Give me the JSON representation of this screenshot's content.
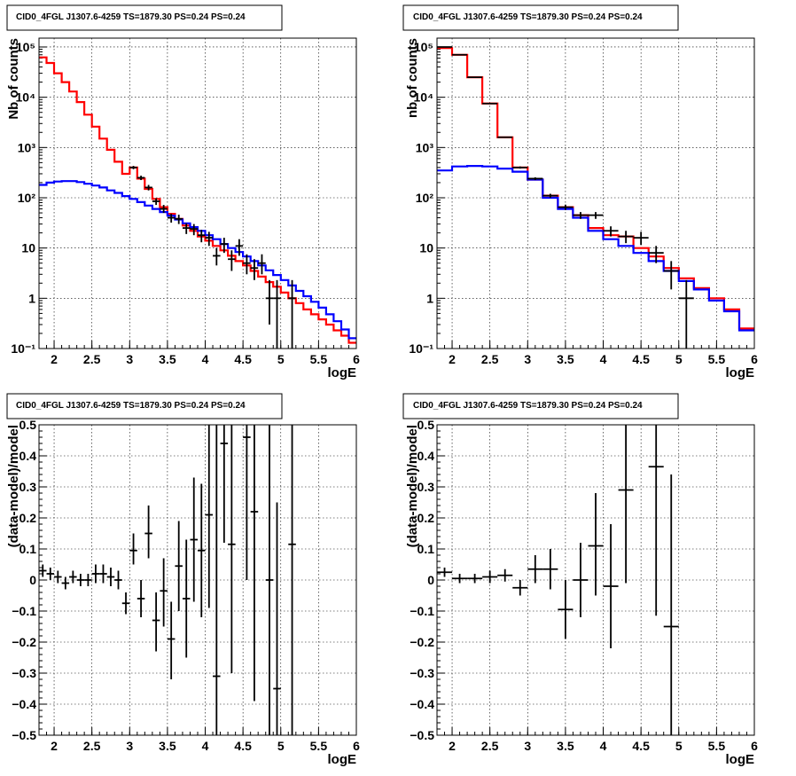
{
  "colors": {
    "total_model": "#ff0000",
    "source_model": "#0000ff",
    "data": "#000000",
    "grid": "#000000"
  },
  "chart_data": [
    {
      "type": "line",
      "position": "top-left",
      "title": "CID0_4FGL J1307.6-4259 TS=1879.30 PS=0.24 PS=0.24",
      "xlabel": "logE",
      "ylabel": "Nb of counts",
      "xlim": [
        1.8,
        6.0
      ],
      "ylim": [
        0.1,
        150000
      ],
      "yscale": "log",
      "grid": true,
      "xticks": [
        "2",
        "2.5",
        "3",
        "3.5",
        "4",
        "4.5",
        "5",
        "5.5",
        "6"
      ],
      "yticks": [
        "10^-1",
        "1",
        "10",
        "10^2",
        "10^3",
        "10^4",
        "10^5"
      ],
      "bin_edges": [
        1.8,
        1.9,
        2.0,
        2.1,
        2.2,
        2.3,
        2.4,
        2.5,
        2.6,
        2.7,
        2.8,
        2.9,
        3.0,
        3.1,
        3.2,
        3.3,
        3.4,
        3.5,
        3.6,
        3.7,
        3.8,
        3.9,
        4.0,
        4.1,
        4.2,
        4.3,
        4.4,
        4.5,
        4.6,
        4.7,
        4.8,
        4.9,
        5.0,
        5.1,
        5.2,
        5.3,
        5.4,
        5.5,
        5.6,
        5.7,
        5.8,
        5.9,
        6.0
      ],
      "series": [
        {
          "name": "total model",
          "color": "#ff0000",
          "values": [
            62000,
            48000,
            30000,
            20000,
            13000,
            8000,
            4500,
            2600,
            1500,
            900,
            520,
            300,
            400,
            240,
            150,
            95,
            65,
            48,
            38,
            28,
            22,
            17,
            14,
            11,
            9,
            7,
            5.5,
            4.5,
            3.5,
            2.7,
            2.1,
            1.7,
            1.3,
            1.0,
            0.8,
            0.6,
            0.48,
            0.38,
            0.3,
            0.23,
            0.18,
            0.13
          ]
        },
        {
          "name": "source model",
          "color": "#0000ff",
          "values": [
            180,
            200,
            210,
            215,
            215,
            205,
            190,
            175,
            160,
            140,
            125,
            108,
            95,
            82,
            70,
            60,
            52,
            44,
            37,
            31,
            26,
            22,
            18,
            15,
            12,
            10,
            8.3,
            6.8,
            5.5,
            4.5,
            3.6,
            2.9,
            2.3,
            1.8,
            1.4,
            1.1,
            0.85,
            0.65,
            0.48,
            0.35,
            0.24,
            0.16
          ]
        }
      ],
      "points": [
        {
          "x": 3.05,
          "y": 400,
          "xerr": 0.05,
          "ylo": 370,
          "yhi": 430
        },
        {
          "x": 3.15,
          "y": 250,
          "xerr": 0.05,
          "ylo": 225,
          "yhi": 275
        },
        {
          "x": 3.25,
          "y": 160,
          "xerr": 0.05,
          "ylo": 140,
          "yhi": 180
        },
        {
          "x": 3.35,
          "y": 85,
          "xerr": 0.05,
          "ylo": 72,
          "yhi": 98
        },
        {
          "x": 3.45,
          "y": 60,
          "xerr": 0.05,
          "ylo": 50,
          "yhi": 72
        },
        {
          "x": 3.55,
          "y": 40,
          "xerr": 0.05,
          "ylo": 32,
          "yhi": 48
        },
        {
          "x": 3.65,
          "y": 38,
          "xerr": 0.05,
          "ylo": 30,
          "yhi": 46
        },
        {
          "x": 3.75,
          "y": 25,
          "xerr": 0.05,
          "ylo": 19,
          "yhi": 31
        },
        {
          "x": 3.85,
          "y": 24,
          "xerr": 0.05,
          "ylo": 18,
          "yhi": 30
        },
        {
          "x": 3.95,
          "y": 18,
          "xerr": 0.05,
          "ylo": 13,
          "yhi": 23
        },
        {
          "x": 4.05,
          "y": 16,
          "xerr": 0.05,
          "ylo": 11,
          "yhi": 21
        },
        {
          "x": 4.15,
          "y": 7,
          "xerr": 0.05,
          "ylo": 4.5,
          "yhi": 10
        },
        {
          "x": 4.25,
          "y": 12,
          "xerr": 0.05,
          "ylo": 8,
          "yhi": 16
        },
        {
          "x": 4.35,
          "y": 6,
          "xerr": 0.05,
          "ylo": 3.5,
          "yhi": 9
        },
        {
          "x": 4.45,
          "y": 11,
          "xerr": 0.05,
          "ylo": 7,
          "yhi": 15
        },
        {
          "x": 4.55,
          "y": 5,
          "xerr": 0.05,
          "ylo": 3,
          "yhi": 7.5
        },
        {
          "x": 4.65,
          "y": 4,
          "xerr": 0.05,
          "ylo": 2.3,
          "yhi": 6
        },
        {
          "x": 4.75,
          "y": 5,
          "xerr": 0.05,
          "ylo": 3,
          "yhi": 7.5
        },
        {
          "x": 4.85,
          "y": 1,
          "xerr": 0.05,
          "ylo": 0.3,
          "yhi": 2.3
        },
        {
          "x": 4.95,
          "y": 1,
          "xerr": 0.05,
          "ylo": 0.1,
          "yhi": 2.3
        },
        {
          "x": 5.15,
          "y": 1,
          "xerr": 0.05,
          "ylo": 0.1,
          "yhi": 2.3
        }
      ]
    },
    {
      "type": "line",
      "position": "top-right",
      "title": "CID0_4FGL J1307.6-4259 TS=1879.30 PS=0.24 PS=0.24",
      "xlabel": "logE",
      "ylabel": "nb of counts",
      "xlim": [
        1.8,
        6.0
      ],
      "ylim": [
        0.1,
        150000
      ],
      "yscale": "log",
      "grid": true,
      "xticks": [
        "2",
        "2.5",
        "3",
        "3.5",
        "4",
        "4.5",
        "5",
        "5.5",
        "6"
      ],
      "yticks": [
        "10^-1",
        "1",
        "10",
        "10^2",
        "10^3",
        "10^4",
        "10^5"
      ],
      "bin_edges": [
        1.8,
        2.0,
        2.2,
        2.4,
        2.6,
        2.8,
        3.0,
        3.2,
        3.4,
        3.6,
        3.8,
        4.0,
        4.2,
        4.4,
        4.6,
        4.8,
        5.0,
        5.2,
        5.4,
        5.6,
        5.8,
        6.0
      ],
      "series": [
        {
          "name": "total model",
          "color": "#ff0000",
          "values": [
            95000,
            70000,
            25000,
            7500,
            1600,
            400,
            230,
            110,
            65,
            45,
            25,
            18,
            17,
            10,
            6.8,
            4,
            2.5,
            1.6,
            1.0,
            0.6,
            0.25
          ]
        },
        {
          "name": "source model",
          "color": "#0000ff",
          "values": [
            350,
            420,
            430,
            420,
            380,
            330,
            230,
            100,
            60,
            40,
            22,
            15,
            11,
            8,
            5.5,
            3.5,
            2.2,
            1.5,
            0.9,
            0.55,
            0.23
          ]
        }
      ],
      "points": [
        {
          "x": 1.9,
          "y": 100000,
          "xerr": 0.1,
          "ylo": 99000,
          "yhi": 101000
        },
        {
          "x": 2.1,
          "y": 70000,
          "xerr": 0.1,
          "ylo": 69000,
          "yhi": 71000
        },
        {
          "x": 2.3,
          "y": 25000,
          "xerr": 0.1,
          "ylo": 24500,
          "yhi": 25500
        },
        {
          "x": 2.5,
          "y": 7500,
          "xerr": 0.1,
          "ylo": 7300,
          "yhi": 7700
        },
        {
          "x": 2.7,
          "y": 1600,
          "xerr": 0.1,
          "ylo": 1550,
          "yhi": 1650
        },
        {
          "x": 2.9,
          "y": 400,
          "xerr": 0.1,
          "ylo": 380,
          "yhi": 420
        },
        {
          "x": 3.1,
          "y": 240,
          "xerr": 0.1,
          "ylo": 225,
          "yhi": 255
        },
        {
          "x": 3.3,
          "y": 110,
          "xerr": 0.1,
          "ylo": 100,
          "yhi": 120
        },
        {
          "x": 3.5,
          "y": 65,
          "xerr": 0.1,
          "ylo": 57,
          "yhi": 73
        },
        {
          "x": 3.7,
          "y": 45,
          "xerr": 0.1,
          "ylo": 38,
          "yhi": 52
        },
        {
          "x": 3.9,
          "y": 45,
          "xerr": 0.1,
          "ylo": 38,
          "yhi": 52
        },
        {
          "x": 4.1,
          "y": 22,
          "xerr": 0.1,
          "ylo": 17,
          "yhi": 27
        },
        {
          "x": 4.3,
          "y": 17,
          "xerr": 0.1,
          "ylo": 12.5,
          "yhi": 22
        },
        {
          "x": 4.5,
          "y": 16,
          "xerr": 0.1,
          "ylo": 11.5,
          "yhi": 21
        },
        {
          "x": 4.7,
          "y": 8,
          "xerr": 0.1,
          "ylo": 5,
          "yhi": 11
        },
        {
          "x": 4.9,
          "y": 3.5,
          "xerr": 0.1,
          "ylo": 1.5,
          "yhi": 5.5
        },
        {
          "x": 5.1,
          "y": 1,
          "xerr": 0.1,
          "ylo": 0.1,
          "yhi": 2.3
        }
      ]
    },
    {
      "type": "scatter",
      "position": "bottom-left",
      "title": "CID0_4FGL J1307.6-4259 TS=1879.30 PS=0.24 PS=0.24",
      "xlabel": "logE",
      "ylabel": "(data-model)/model",
      "xlim": [
        1.8,
        6.0
      ],
      "ylim": [
        -0.5,
        0.5
      ],
      "yscale": "linear",
      "grid": true,
      "xticks": [
        "2",
        "2.5",
        "3",
        "3.5",
        "4",
        "4.5",
        "5",
        "5.5",
        "6"
      ],
      "yticks": [
        "−0.5",
        "−0.4",
        "−0.3",
        "−0.2",
        "−0.1",
        "0",
        "0.1",
        "0.2",
        "0.3",
        "0.4",
        "0.5"
      ],
      "points": [
        {
          "x": 1.85,
          "y": 0.03,
          "xerr": 0.05,
          "ylo": 0.01,
          "yhi": 0.05
        },
        {
          "x": 1.95,
          "y": 0.02,
          "xerr": 0.05,
          "ylo": 0.0,
          "yhi": 0.04
        },
        {
          "x": 2.05,
          "y": 0.01,
          "xerr": 0.05,
          "ylo": -0.01,
          "yhi": 0.03
        },
        {
          "x": 2.15,
          "y": -0.01,
          "xerr": 0.05,
          "ylo": -0.03,
          "yhi": 0.01
        },
        {
          "x": 2.25,
          "y": 0.01,
          "xerr": 0.05,
          "ylo": -0.01,
          "yhi": 0.03
        },
        {
          "x": 2.35,
          "y": 0.0,
          "xerr": 0.05,
          "ylo": -0.02,
          "yhi": 0.02
        },
        {
          "x": 2.45,
          "y": 0.0,
          "xerr": 0.05,
          "ylo": -0.02,
          "yhi": 0.02
        },
        {
          "x": 2.55,
          "y": 0.02,
          "xerr": 0.05,
          "ylo": -0.01,
          "yhi": 0.05
        },
        {
          "x": 2.65,
          "y": 0.02,
          "xerr": 0.05,
          "ylo": -0.01,
          "yhi": 0.05
        },
        {
          "x": 2.75,
          "y": 0.01,
          "xerr": 0.05,
          "ylo": -0.02,
          "yhi": 0.04
        },
        {
          "x": 2.85,
          "y": 0.0,
          "xerr": 0.05,
          "ylo": -0.03,
          "yhi": 0.03
        },
        {
          "x": 2.95,
          "y": -0.075,
          "xerr": 0.05,
          "ylo": -0.11,
          "yhi": -0.04
        },
        {
          "x": 3.05,
          "y": 0.095,
          "xerr": 0.05,
          "ylo": 0.05,
          "yhi": 0.15
        },
        {
          "x": 3.15,
          "y": -0.06,
          "xerr": 0.05,
          "ylo": -0.12,
          "yhi": 0.0
        },
        {
          "x": 3.25,
          "y": 0.15,
          "xerr": 0.05,
          "ylo": 0.07,
          "yhi": 0.24
        },
        {
          "x": 3.35,
          "y": -0.13,
          "xerr": 0.05,
          "ylo": -0.23,
          "yhi": -0.04
        },
        {
          "x": 3.45,
          "y": -0.035,
          "xerr": 0.05,
          "ylo": -0.15,
          "yhi": 0.07
        },
        {
          "x": 3.55,
          "y": -0.19,
          "xerr": 0.05,
          "ylo": -0.32,
          "yhi": -0.07
        },
        {
          "x": 3.65,
          "y": 0.045,
          "xerr": 0.05,
          "ylo": -0.1,
          "yhi": 0.19
        },
        {
          "x": 3.75,
          "y": -0.06,
          "xerr": 0.05,
          "ylo": -0.25,
          "yhi": 0.13
        },
        {
          "x": 3.85,
          "y": 0.13,
          "xerr": 0.05,
          "ylo": -0.07,
          "yhi": 0.33
        },
        {
          "x": 3.95,
          "y": 0.095,
          "xerr": 0.05,
          "ylo": -0.12,
          "yhi": 0.31
        },
        {
          "x": 4.05,
          "y": 0.21,
          "xerr": 0.05,
          "ylo": -0.09,
          "yhi": 0.5
        },
        {
          "x": 4.15,
          "y": -0.31,
          "xerr": 0.05,
          "ylo": -0.5,
          "yhi": 0.5
        },
        {
          "x": 4.25,
          "y": 0.44,
          "xerr": 0.05,
          "ylo": 0.12,
          "yhi": 0.5
        },
        {
          "x": 4.35,
          "y": 0.115,
          "xerr": 0.05,
          "ylo": -0.3,
          "yhi": 0.5
        },
        {
          "x": 4.55,
          "y": 0.46,
          "xerr": 0.05,
          "ylo": 0.0,
          "yhi": 0.5
        },
        {
          "x": 4.65,
          "y": 0.22,
          "xerr": 0.05,
          "ylo": -0.39,
          "yhi": 0.5
        },
        {
          "x": 4.85,
          "y": 0.0,
          "xerr": 0.05,
          "ylo": -0.5,
          "yhi": 0.5
        },
        {
          "x": 4.95,
          "y": -0.35,
          "xerr": 0.05,
          "ylo": -0.5,
          "yhi": 0.25
        },
        {
          "x": 5.15,
          "y": 0.115,
          "xerr": 0.05,
          "ylo": -0.5,
          "yhi": 0.5
        }
      ]
    },
    {
      "type": "scatter",
      "position": "bottom-right",
      "title": "CID0_4FGL J1307.6-4259 TS=1879.30 PS=0.24 PS=0.24",
      "xlabel": "logE",
      "ylabel": "(data-model)/model",
      "xlim": [
        1.8,
        6.0
      ],
      "ylim": [
        -0.5,
        0.5
      ],
      "yscale": "linear",
      "grid": true,
      "xticks": [
        "2",
        "2.5",
        "3",
        "3.5",
        "4",
        "4.5",
        "5",
        "5.5",
        "6"
      ],
      "yticks": [
        "−0.5",
        "−0.4",
        "−0.3",
        "−0.2",
        "−0.1",
        "0",
        "0.1",
        "0.2",
        "0.3",
        "0.4",
        "0.5"
      ],
      "points": [
        {
          "x": 1.9,
          "y": 0.025,
          "xerr": 0.1,
          "ylo": 0.01,
          "yhi": 0.04
        },
        {
          "x": 2.1,
          "y": 0.005,
          "xerr": 0.1,
          "ylo": -0.01,
          "yhi": 0.02
        },
        {
          "x": 2.3,
          "y": 0.005,
          "xerr": 0.1,
          "ylo": -0.01,
          "yhi": 0.02
        },
        {
          "x": 2.5,
          "y": 0.01,
          "xerr": 0.1,
          "ylo": -0.01,
          "yhi": 0.03
        },
        {
          "x": 2.7,
          "y": 0.015,
          "xerr": 0.1,
          "ylo": -0.005,
          "yhi": 0.035
        },
        {
          "x": 2.9,
          "y": -0.025,
          "xerr": 0.1,
          "ylo": -0.05,
          "yhi": 0.0
        },
        {
          "x": 3.1,
          "y": 0.035,
          "xerr": 0.1,
          "ylo": -0.01,
          "yhi": 0.08
        },
        {
          "x": 3.3,
          "y": 0.035,
          "xerr": 0.1,
          "ylo": -0.03,
          "yhi": 0.1
        },
        {
          "x": 3.5,
          "y": -0.095,
          "xerr": 0.1,
          "ylo": -0.19,
          "yhi": 0.0
        },
        {
          "x": 3.7,
          "y": 0.0,
          "xerr": 0.1,
          "ylo": -0.12,
          "yhi": 0.12
        },
        {
          "x": 3.9,
          "y": 0.11,
          "xerr": 0.1,
          "ylo": -0.05,
          "yhi": 0.28
        },
        {
          "x": 4.1,
          "y": -0.02,
          "xerr": 0.1,
          "ylo": -0.22,
          "yhi": 0.18
        },
        {
          "x": 4.3,
          "y": 0.29,
          "xerr": 0.1,
          "ylo": -0.01,
          "yhi": 0.5
        },
        {
          "x": 4.7,
          "y": 0.365,
          "xerr": 0.1,
          "ylo": -0.115,
          "yhi": 0.5
        },
        {
          "x": 4.9,
          "y": -0.15,
          "xerr": 0.1,
          "ylo": -0.5,
          "yhi": 0.34
        }
      ]
    }
  ]
}
